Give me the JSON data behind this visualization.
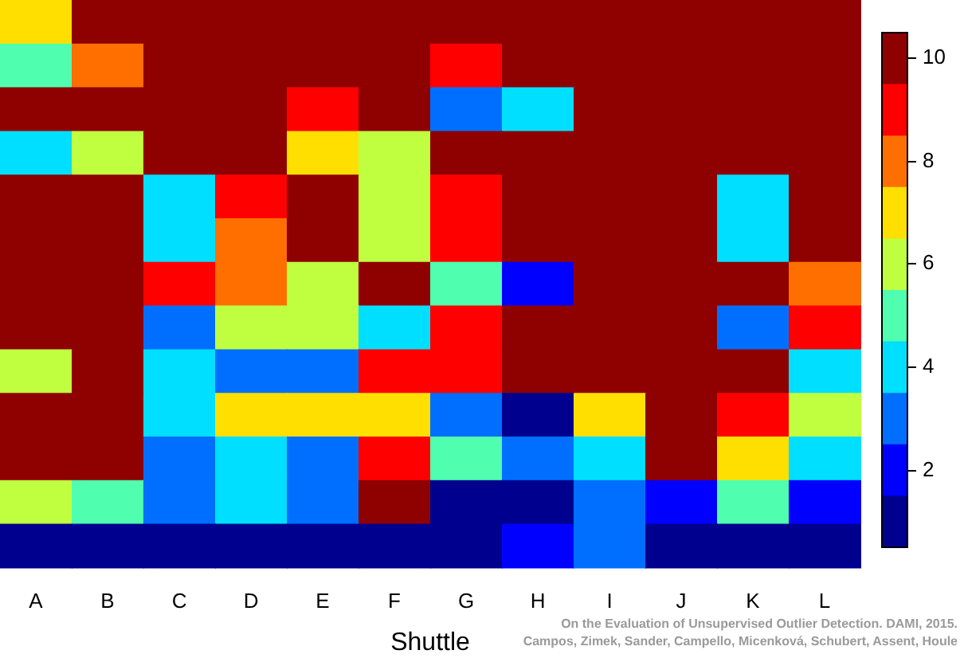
{
  "chart_data": {
    "type": "heatmap",
    "xlabel": "Shuttle",
    "categories": [
      "A",
      "B",
      "C",
      "D",
      "E",
      "F",
      "G",
      "H",
      "I",
      "J",
      "K",
      "L"
    ],
    "y_categories": [
      null,
      null,
      null,
      null,
      null,
      null,
      null,
      null,
      null,
      null,
      null,
      null,
      null
    ],
    "cells": [
      [
        7,
        10,
        10,
        10,
        10,
        10,
        10,
        10,
        10,
        10,
        10,
        10
      ],
      [
        5,
        8,
        10,
        10,
        10,
        10,
        9,
        10,
        10,
        10,
        10,
        10
      ],
      [
        10,
        10,
        10,
        10,
        9,
        10,
        3,
        4,
        10,
        10,
        10,
        10
      ],
      [
        4,
        6,
        10,
        10,
        7,
        6,
        10,
        10,
        10,
        10,
        10,
        10
      ],
      [
        10,
        10,
        4,
        9,
        10,
        6,
        9,
        10,
        10,
        10,
        4,
        10
      ],
      [
        10,
        10,
        4,
        8,
        10,
        6,
        9,
        10,
        10,
        10,
        4,
        10
      ],
      [
        10,
        10,
        9,
        8,
        6,
        10,
        5,
        2,
        10,
        10,
        10,
        8
      ],
      [
        10,
        10,
        3,
        6,
        6,
        4,
        9,
        10,
        10,
        10,
        3,
        9
      ],
      [
        6,
        10,
        4,
        3,
        3,
        9,
        9,
        10,
        10,
        10,
        10,
        4
      ],
      [
        10,
        10,
        4,
        7,
        7,
        7,
        3,
        1,
        7,
        10,
        9,
        6
      ],
      [
        10,
        10,
        3,
        4,
        3,
        9,
        5,
        3,
        4,
        10,
        7,
        4
      ],
      [
        6,
        5,
        3,
        4,
        3,
        10,
        1,
        1,
        3,
        2,
        5,
        2
      ],
      [
        1,
        1,
        1,
        1,
        1,
        1,
        1,
        2,
        3,
        1,
        1,
        1
      ]
    ],
    "colors": [
      "#00008f",
      "#0000ff",
      "#006fff",
      "#00dfff",
      "#4fffaf",
      "#bfff3f",
      "#ffdf00",
      "#ff6f00",
      "#ff0000",
      "#8f0000"
    ],
    "clim": [
      0.5,
      10.5
    ],
    "cticks": [
      2,
      4,
      6,
      8,
      10
    ],
    "annotations": [
      "On the Evaluation of Unsupervised Outlier Detection. DAMI, 2015.",
      "Campos, Zimek, Sander, Campello, Micenková, Schubert, Assent, Houle"
    ]
  }
}
